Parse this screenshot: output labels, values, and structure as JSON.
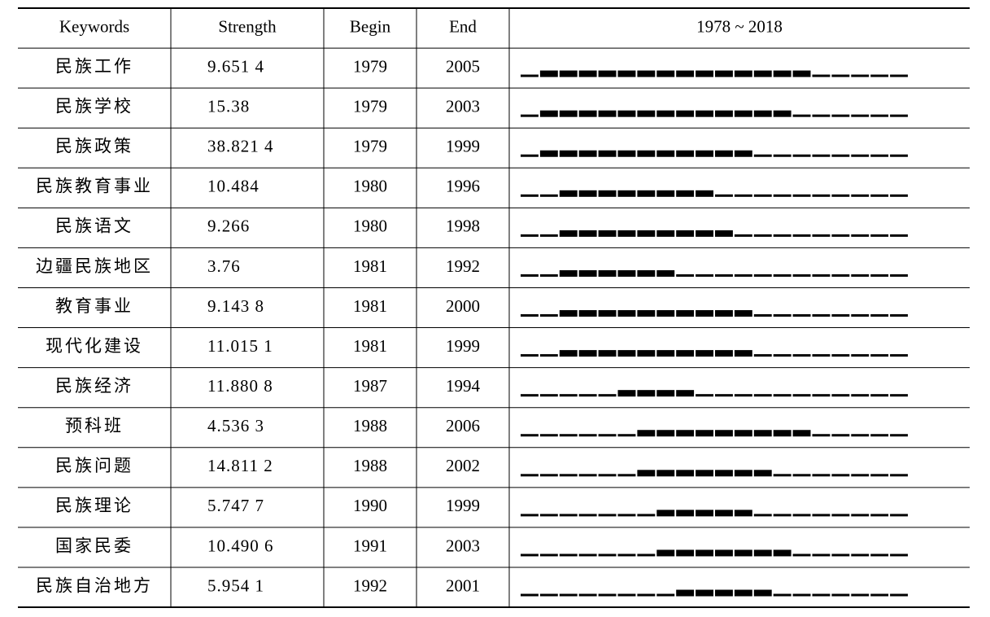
{
  "table": {
    "header": [
      "Keywords",
      "Strength",
      "Begin",
      "End",
      "1978 ~ 2018"
    ],
    "rows": [
      {
        "keyword": "民族工作",
        "strength": "9.651 4",
        "begin": 1979,
        "end": 2005
      },
      {
        "keyword": "民族学校",
        "strength": "15.38",
        "begin": 1979,
        "end": 2003
      },
      {
        "keyword": "民族政策",
        "strength": "38.821 4",
        "begin": 1979,
        "end": 1999
      },
      {
        "keyword": "民族教育事业",
        "strength": "10.484",
        "begin": 1980,
        "end": 1996
      },
      {
        "keyword": "民族语文",
        "strength": "9.266",
        "begin": 1980,
        "end": 1998
      },
      {
        "keyword": "边疆民族地区",
        "strength": "3.76",
        "begin": 1981,
        "end": 1992
      },
      {
        "keyword": "教育事业",
        "strength": "9.143 8",
        "begin": 1981,
        "end": 2000
      },
      {
        "keyword": "现代化建设",
        "strength": "11.015 1",
        "begin": 1981,
        "end": 1999
      },
      {
        "keyword": "民族经济",
        "strength": "11.880 8",
        "begin": 1987,
        "end": 1994
      },
      {
        "keyword": "预科班",
        "strength": "4.536 3",
        "begin": 1988,
        "end": 2006
      },
      {
        "keyword": "民族问题",
        "strength": "14.811 2",
        "begin": 1988,
        "end": 2002
      },
      {
        "keyword": "民族理论",
        "strength": "5.747 7",
        "begin": 1990,
        "end": 1999
      },
      {
        "keyword": "国家民委",
        "strength": "10.490 6",
        "begin": 1991,
        "end": 2003
      },
      {
        "keyword": "民族自治地方",
        "strength": "5.954 1",
        "begin": 1992,
        "end": 2001
      }
    ]
  }
}
